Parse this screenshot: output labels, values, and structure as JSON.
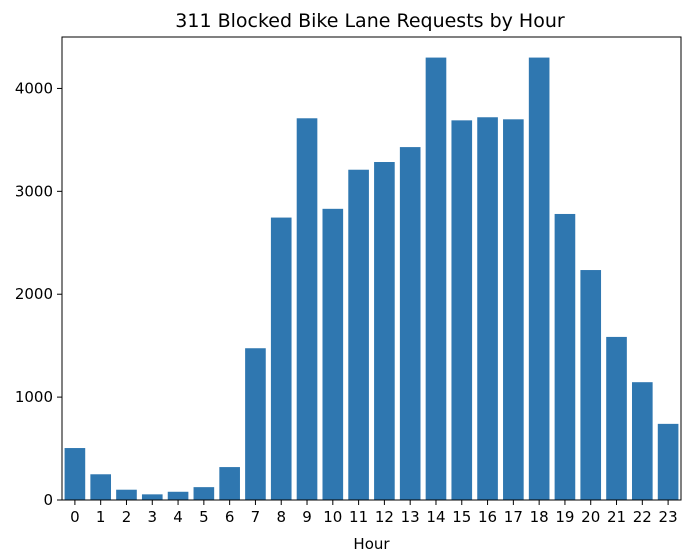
{
  "chart_data": {
    "type": "bar",
    "title": "311 Blocked Bike Lane Requests by Hour",
    "xlabel": "Hour",
    "ylabel": "",
    "categories": [
      "0",
      "1",
      "2",
      "3",
      "4",
      "5",
      "6",
      "7",
      "8",
      "9",
      "10",
      "11",
      "12",
      "13",
      "14",
      "15",
      "16",
      "17",
      "18",
      "19",
      "20",
      "21",
      "22",
      "23"
    ],
    "values": [
      505,
      250,
      100,
      55,
      80,
      125,
      320,
      1475,
      2745,
      3710,
      2830,
      3210,
      3285,
      3430,
      4300,
      3690,
      3720,
      3700,
      4300,
      2780,
      2235,
      1585,
      1145,
      740
    ],
    "ylim": [
      0,
      4500
    ],
    "yticks": [
      0,
      1000,
      2000,
      3000,
      4000
    ],
    "ytick_labels": [
      "0",
      "1000",
      "2000",
      "3000",
      "4000"
    ],
    "grid": false,
    "legend": "none",
    "bar_color": "#2f77b0"
  }
}
